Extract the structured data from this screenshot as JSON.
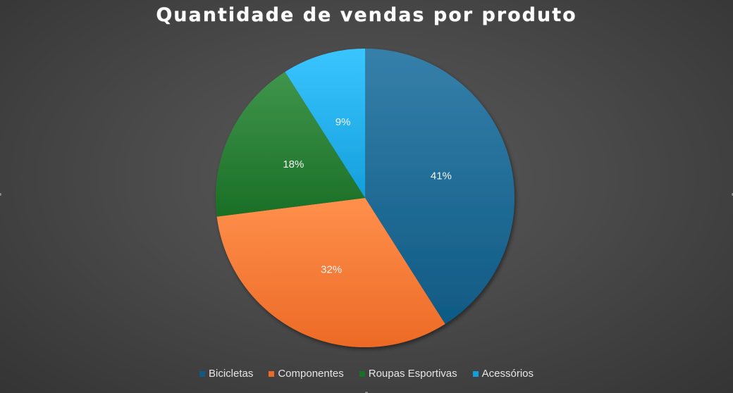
{
  "chart_data": {
    "type": "pie",
    "title": "Quantidade de vendas por produto",
    "categories": [
      "Bicicletas",
      "Componentes",
      "Roupas Esportivas",
      "Acessórios"
    ],
    "values": [
      41,
      32,
      18,
      9
    ],
    "labels": [
      "41%",
      "32%",
      "18%",
      "9%"
    ],
    "colors": [
      "#0f5a84",
      "#ec6a26",
      "#1a6f26",
      "#149fdc"
    ],
    "legend": "bottom"
  }
}
